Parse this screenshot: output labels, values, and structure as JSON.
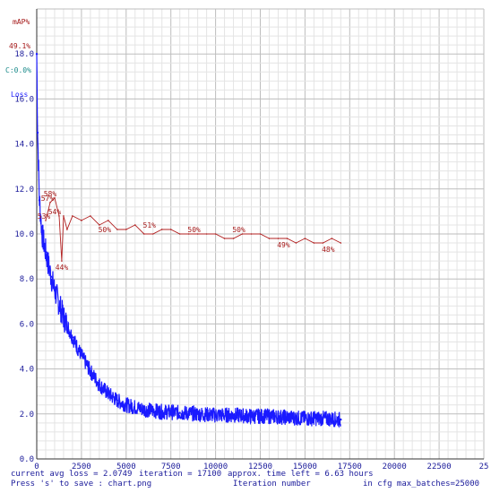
{
  "legend": {
    "map_label": "mAP%",
    "map_value": "49.1%",
    "class_label": "C:0.0%",
    "loss_label": "Loss"
  },
  "status": {
    "avg_loss": "current avg loss = 2.0749",
    "iteration": "iteration = 17100",
    "time_left": "approx. time left = 6.63 hours",
    "save_hint": "Press 's' to save : chart.png",
    "x_title": "Iteration number",
    "max_batches": "in cfg max_batches=25000"
  },
  "colors": {
    "loss": "#1a1aff",
    "map": "#b22222",
    "grid": "#cfcfcf",
    "axis": "#1a1a9a"
  },
  "chart_data": {
    "type": "line",
    "xlim": [
      0,
      25000
    ],
    "ylim": [
      0,
      20
    ],
    "xticks": [
      "0",
      "2500",
      "5000",
      "7500",
      "10000",
      "12500",
      "15000",
      "17500",
      "20000",
      "22500",
      "25"
    ],
    "yticks": [
      "0.0",
      "2.0",
      "4.0",
      "6.0",
      "8.0",
      "10.0",
      "12.0",
      "14.0",
      "16.0",
      "18.0"
    ],
    "grid": true,
    "series": [
      {
        "name": "Loss",
        "x": [
          0,
          50,
          150,
          300,
          500,
          800,
          1000,
          1500,
          2000,
          2500,
          3000,
          3500,
          4000,
          4500,
          5000,
          6000,
          7000,
          8000,
          9000,
          10000,
          11000,
          12000,
          13000,
          14000,
          15000,
          16000,
          17000
        ],
        "y": [
          18.0,
          14.5,
          11.5,
          10.0,
          9.2,
          8.1,
          7.5,
          6.3,
          5.4,
          4.6,
          3.9,
          3.3,
          2.9,
          2.6,
          2.4,
          2.2,
          2.1,
          2.05,
          2.0,
          1.95,
          1.95,
          1.9,
          1.9,
          1.85,
          1.8,
          1.8,
          1.75
        ]
      },
      {
        "name": "mAP%",
        "x": [
          500,
          750,
          1000,
          1250,
          1400,
          1500,
          1700,
          2000,
          2500,
          3000,
          3500,
          4000,
          4500,
          5000,
          5500,
          6000,
          6500,
          7000,
          7500,
          8000,
          8500,
          9000,
          9500,
          10000,
          10500,
          11000,
          11500,
          12000,
          12500,
          13000,
          13500,
          14000,
          14500,
          15000,
          15500,
          16000,
          16500,
          17000
        ],
        "y": [
          53,
          57,
          58,
          54,
          44,
          54,
          51,
          54,
          53,
          54,
          52,
          53,
          51,
          51,
          52,
          50,
          50,
          51,
          51,
          50,
          50,
          50,
          50,
          50,
          49,
          49,
          50,
          50,
          50,
          49,
          49,
          49,
          48,
          49,
          48,
          48,
          49,
          48
        ]
      }
    ],
    "point_labels": [
      {
        "x": 750,
        "y": 58,
        "text": "58%"
      },
      {
        "x": 600,
        "y": 57,
        "text": "57%"
      },
      {
        "x": 1000,
        "y": 54,
        "text": "54%"
      },
      {
        "x": 400,
        "y": 53,
        "text": "53%"
      },
      {
        "x": 1400,
        "y": 44,
        "text": "44%"
      },
      {
        "x": 3800,
        "y": 50,
        "text": "50%"
      },
      {
        "x": 6300,
        "y": 51,
        "text": "51%"
      },
      {
        "x": 8800,
        "y": 50,
        "text": "50%"
      },
      {
        "x": 11300,
        "y": 50,
        "text": "50%"
      },
      {
        "x": 13800,
        "y": 49,
        "text": "49%"
      },
      {
        "x": 16300,
        "y": 48,
        "text": "48%"
      }
    ]
  }
}
